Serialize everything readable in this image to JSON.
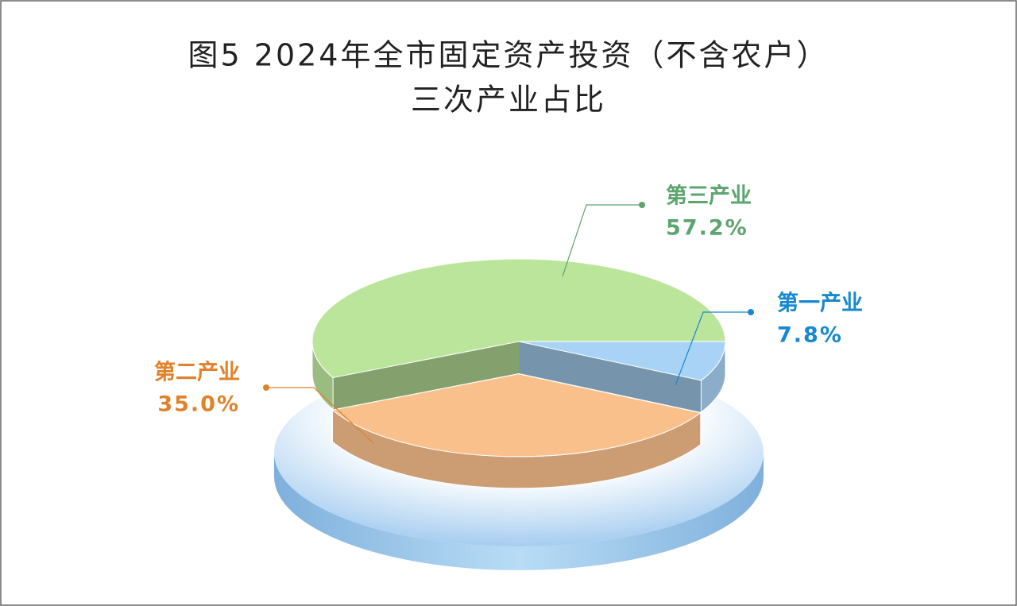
{
  "chart_data": {
    "type": "pie3d",
    "title": [
      "图5  2024年全市固定资产投资（不含农户）",
      "三次产业占比"
    ],
    "categories": [
      "第一产业",
      "第二产业",
      "第三产业"
    ],
    "values": [
      7.8,
      35.0,
      57.2
    ],
    "value_labels": [
      "7.8%",
      "35.0%",
      "57.2%"
    ],
    "colors": [
      "#a9d3f6",
      "#f9c08c",
      "#bce59c"
    ],
    "label_colors": [
      "#1689cf",
      "#e0822a",
      "#5ca56e"
    ]
  }
}
